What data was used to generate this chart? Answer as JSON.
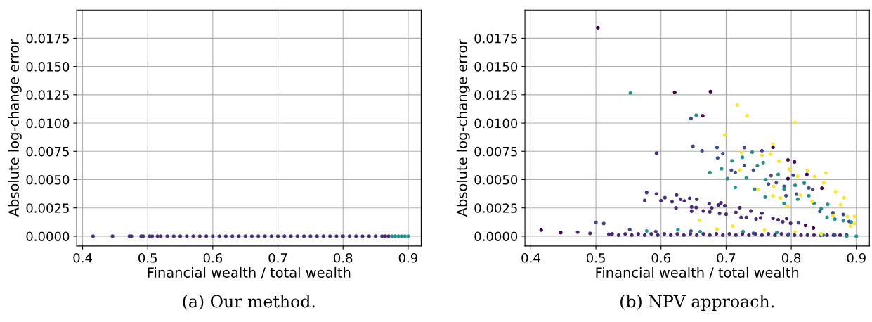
{
  "chart_data": [
    {
      "type": "scatter",
      "xlabel": "Financial wealth / total wealth",
      "ylabel": "Absolute log-change error",
      "annotations": [
        "(a) Our method."
      ],
      "xlim": [
        0.391,
        0.92
      ],
      "ylim": [
        -0.00087,
        0.02
      ],
      "xticks": [
        0.4,
        0.5,
        0.6,
        0.7,
        0.8,
        0.9
      ],
      "yticks": [
        {
          "value": 0,
          "label": "0.0000"
        },
        {
          "value": 0.0025,
          "label": "0.0025"
        },
        {
          "value": 0.005,
          "label": "0.0050"
        },
        {
          "value": 0.0075,
          "label": "0.0075"
        },
        {
          "value": 0.01,
          "label": "0.0100"
        },
        {
          "value": 0.0125,
          "label": "0.0125"
        },
        {
          "value": 0.015,
          "label": "0.0150"
        },
        {
          "value": 0.0175,
          "label": "0.0175"
        }
      ],
      "grid": true,
      "marker": "circle",
      "series": [
        {
          "color": "#472d7b",
          "x": [
            0.416,
            0.446,
            0.472,
            0.475,
            0.49,
            0.493,
            0.503,
            0.507,
            0.515,
            0.52,
            0.53,
            0.54,
            0.55,
            0.56,
            0.57,
            0.58,
            0.59,
            0.6,
            0.61,
            0.62,
            0.63,
            0.64,
            0.65,
            0.66,
            0.67,
            0.68,
            0.69,
            0.7,
            0.71,
            0.72,
            0.73,
            0.74,
            0.75,
            0.76,
            0.77,
            0.78,
            0.79,
            0.8,
            0.81,
            0.82,
            0.83,
            0.84,
            0.85,
            0.86,
            0.865,
            0.87
          ],
          "values": [
            0,
            0,
            0,
            0,
            0,
            0,
            0,
            0,
            0,
            0,
            0,
            0,
            0,
            0,
            0,
            0,
            0,
            0,
            0,
            0,
            0,
            0,
            0,
            0,
            0,
            0,
            0,
            0,
            0,
            0,
            0,
            0,
            0,
            0,
            0,
            0,
            0,
            0,
            0,
            0,
            0,
            0,
            0,
            0,
            0,
            0
          ]
        },
        {
          "color": "#21918c",
          "x": [
            0.875,
            0.88,
            0.885,
            0.89,
            0.895,
            0.9
          ],
          "values": [
            0,
            0,
            0,
            0,
            0,
            0
          ]
        }
      ]
    },
    {
      "type": "scatter",
      "xlabel": "Financial wealth / total wealth",
      "ylabel": "Absolute log-change error",
      "annotations": [
        "(b) NPV approach."
      ],
      "xlim": [
        0.391,
        0.92
      ],
      "ylim": [
        -0.00087,
        0.02
      ],
      "xticks": [
        0.4,
        0.5,
        0.6,
        0.7,
        0.8,
        0.9
      ],
      "yticks": [
        {
          "value": 0,
          "label": "0.0000"
        },
        {
          "value": 0.0025,
          "label": "0.0025"
        },
        {
          "value": 0.005,
          "label": "0.0050"
        },
        {
          "value": 0.0075,
          "label": "0.0075"
        },
        {
          "value": 0.01,
          "label": "0.0100"
        },
        {
          "value": 0.0125,
          "label": "0.0125"
        },
        {
          "value": 0.015,
          "label": "0.0150"
        },
        {
          "value": 0.0175,
          "label": "0.0175"
        }
      ],
      "grid": true,
      "marker": "circle",
      "series": [
        {
          "color": "#482878",
          "x": [
            0.593,
            0.575,
            0.578,
            0.593,
            0.6,
            0.606,
            0.617,
            0.624,
            0.623,
            0.63,
            0.636,
            0.644,
            0.647,
            0.647,
            0.655,
            0.654,
            0.665,
            0.674,
            0.678,
            0.675,
            0.688,
            0.692,
            0.698,
            0.69,
            0.7,
            0.721,
            0.715,
            0.723,
            0.731,
            0.738,
            0.746,
            0.755,
            0.753,
            0.772,
            0.78,
            0.787,
            0.799,
            0.793,
            0.472,
            0.491,
            0.52,
            0.525,
            0.535,
            0.545,
            0.555,
            0.565,
            0.575,
            0.585,
            0.595,
            0.605,
            0.615,
            0.625,
            0.635,
            0.645,
            0.655,
            0.665,
            0.675,
            0.685,
            0.695,
            0.705,
            0.715,
            0.725,
            0.735,
            0.745,
            0.755,
            0.765,
            0.775,
            0.785,
            0.795,
            0.805,
            0.815,
            0.825,
            0.835,
            0.845,
            0.855,
            0.865,
            0.875,
            0.885
          ],
          "values": [
            0.00734,
            0.00316,
            0.00386,
            0.00374,
            0.00314,
            0.00341,
            0.00304,
            0.00364,
            0.0025,
            0.00327,
            0.00312,
            0.00335,
            0.00258,
            0.00221,
            0.00327,
            0.00254,
            0.00223,
            0.00288,
            0.0025,
            0.00215,
            0.00275,
            0.00294,
            0.00269,
            0.00201,
            0.00194,
            0.00252,
            0.00211,
            0.00166,
            0.00166,
            0.00223,
            0.00151,
            0.00203,
            0.00162,
            0.00157,
            0.00145,
            0.00128,
            0.00114,
            0.00155,
            0.00035,
            0.00025,
            0.00017,
            0.0002,
            0.0001,
            0.0002,
            0.0001,
            0.0002,
            0.0001,
            0.0002,
            0.0001,
            0.0002,
            0.0001,
            0.0002,
            0.0001,
            0.0002,
            0.0001,
            0.0002,
            0.0001,
            0.0002,
            0.0001,
            0.0002,
            0.0001,
            0.0002,
            0.0001,
            0.0002,
            0.0001,
            0.0002,
            0.0001,
            0.0002,
            0.0001,
            0.0001,
            0.0001,
            0.0001,
            0.0001,
            0.0001,
            0.0001,
            0.0001,
            0.0001,
            0.0001
          ]
        },
        {
          "color": "#440154",
          "x": [
            0.503,
            0.621,
            0.676,
            0.664,
            0.772,
            0.795,
            0.805,
            0.795,
            0.824,
            0.847,
            0.834,
            0.822,
            0.416,
            0.446
          ],
          "values": [
            0.01843,
            0.01272,
            0.01278,
            0.01065,
            0.00786,
            0.00674,
            0.00656,
            0.00509,
            0.00546,
            0.00424,
            0.00072,
            0.00095,
            0.00054,
            0.00031
          ]
        },
        {
          "color": "#3e4a89",
          "x": [
            0.646,
            0.649,
            0.663,
            0.686,
            0.695,
            0.687,
            0.728,
            0.755,
            0.714,
            0.708,
            0.728,
            0.742,
            0.769,
            0.765,
            0.777,
            0.789,
            0.792,
            0.803,
            0.808,
            0.827,
            0.833,
            0.844,
            0.864,
            0.88,
            0.889,
            0.811,
            0.5,
            0.512,
            0.552,
            0.592,
            0.646,
            0.742,
            0.796,
            0.867
          ],
          "values": [
            0.0104,
            0.00794,
            0.00755,
            0.00784,
            0.0073,
            0.00691,
            0.00784,
            0.00755,
            0.00563,
            0.00584,
            0.00625,
            0.00584,
            0.00534,
            0.00461,
            0.00472,
            0.00441,
            0.00358,
            0.00538,
            0.00372,
            0.00426,
            0.00413,
            0.00219,
            0.00207,
            0.00192,
            0.0013,
            0.00118,
            0.00122,
            0.00112,
            0.00058,
            0.00041,
            0.00046,
            0.00025,
            0.00017,
            0.0001
          ]
        },
        {
          "color": "#21918c",
          "x": [
            0.553,
            0.654,
            0.675,
            0.702,
            0.714,
            0.709,
            0.725,
            0.74,
            0.757,
            0.748,
            0.731,
            0.744,
            0.761,
            0.76,
            0.78,
            0.789,
            0.789,
            0.806,
            0.81,
            0.82,
            0.827,
            0.835,
            0.846,
            0.856,
            0.855,
            0.867,
            0.88,
            0.892,
            0.693,
            0.578,
            0.626,
            0.66,
            0.726,
            0.778,
            0.849,
            0.885,
            0.9
          ],
          "values": [
            0.01266,
            0.0107,
            0.00563,
            0.00509,
            0.0043,
            0.00666,
            0.00697,
            0.00743,
            0.0065,
            0.00625,
            0.00515,
            0.00416,
            0.00499,
            0.00345,
            0.00546,
            0.00416,
            0.0029,
            0.00449,
            0.00327,
            0.0047,
            0.00358,
            0.0029,
            0.00244,
            0.00281,
            0.00166,
            0.00151,
            0.00137,
            0.00124,
            0.00596,
            0.00046,
            0.00056,
            0.00039,
            0.00041,
            0.00033,
            0.0001,
            0,
            0
          ]
        },
        {
          "color": "#fde725",
          "x": [
            0.717,
            0.732,
            0.806,
            0.698,
            0.772,
            0.755,
            0.768,
            0.781,
            0.797,
            0.81,
            0.825,
            0.836,
            0.853,
            0.85,
            0.868,
            0.881,
            0.876,
            0.886,
            0.897,
            0.897,
            0.891,
            0.772,
            0.783,
            0.794,
            0.773,
            0.814,
            0.832,
            0.659,
            0.686,
            0.71,
            0.759,
            0.806,
            0.846,
            0.724,
            0.721,
            0.749,
            0.864
          ],
          "values": [
            0.0116,
            0.01065,
            0.01005,
            0.00894,
            0.00813,
            0.00714,
            0.00726,
            0.00662,
            0.00592,
            0.0053,
            0.00584,
            0.00528,
            0.00559,
            0.00472,
            0.00393,
            0.00339,
            0.00277,
            0.00174,
            0.00174,
            0.00112,
            0.00089,
            0.00358,
            0.00337,
            0.00265,
            0.00438,
            0.00364,
            0.00306,
            0.00141,
            0.00062,
            0.00089,
            0.00052,
            0.00037,
            0.00021,
            0.0074,
            0.00585,
            0.00413,
            0.00182
          ]
        }
      ]
    }
  ]
}
